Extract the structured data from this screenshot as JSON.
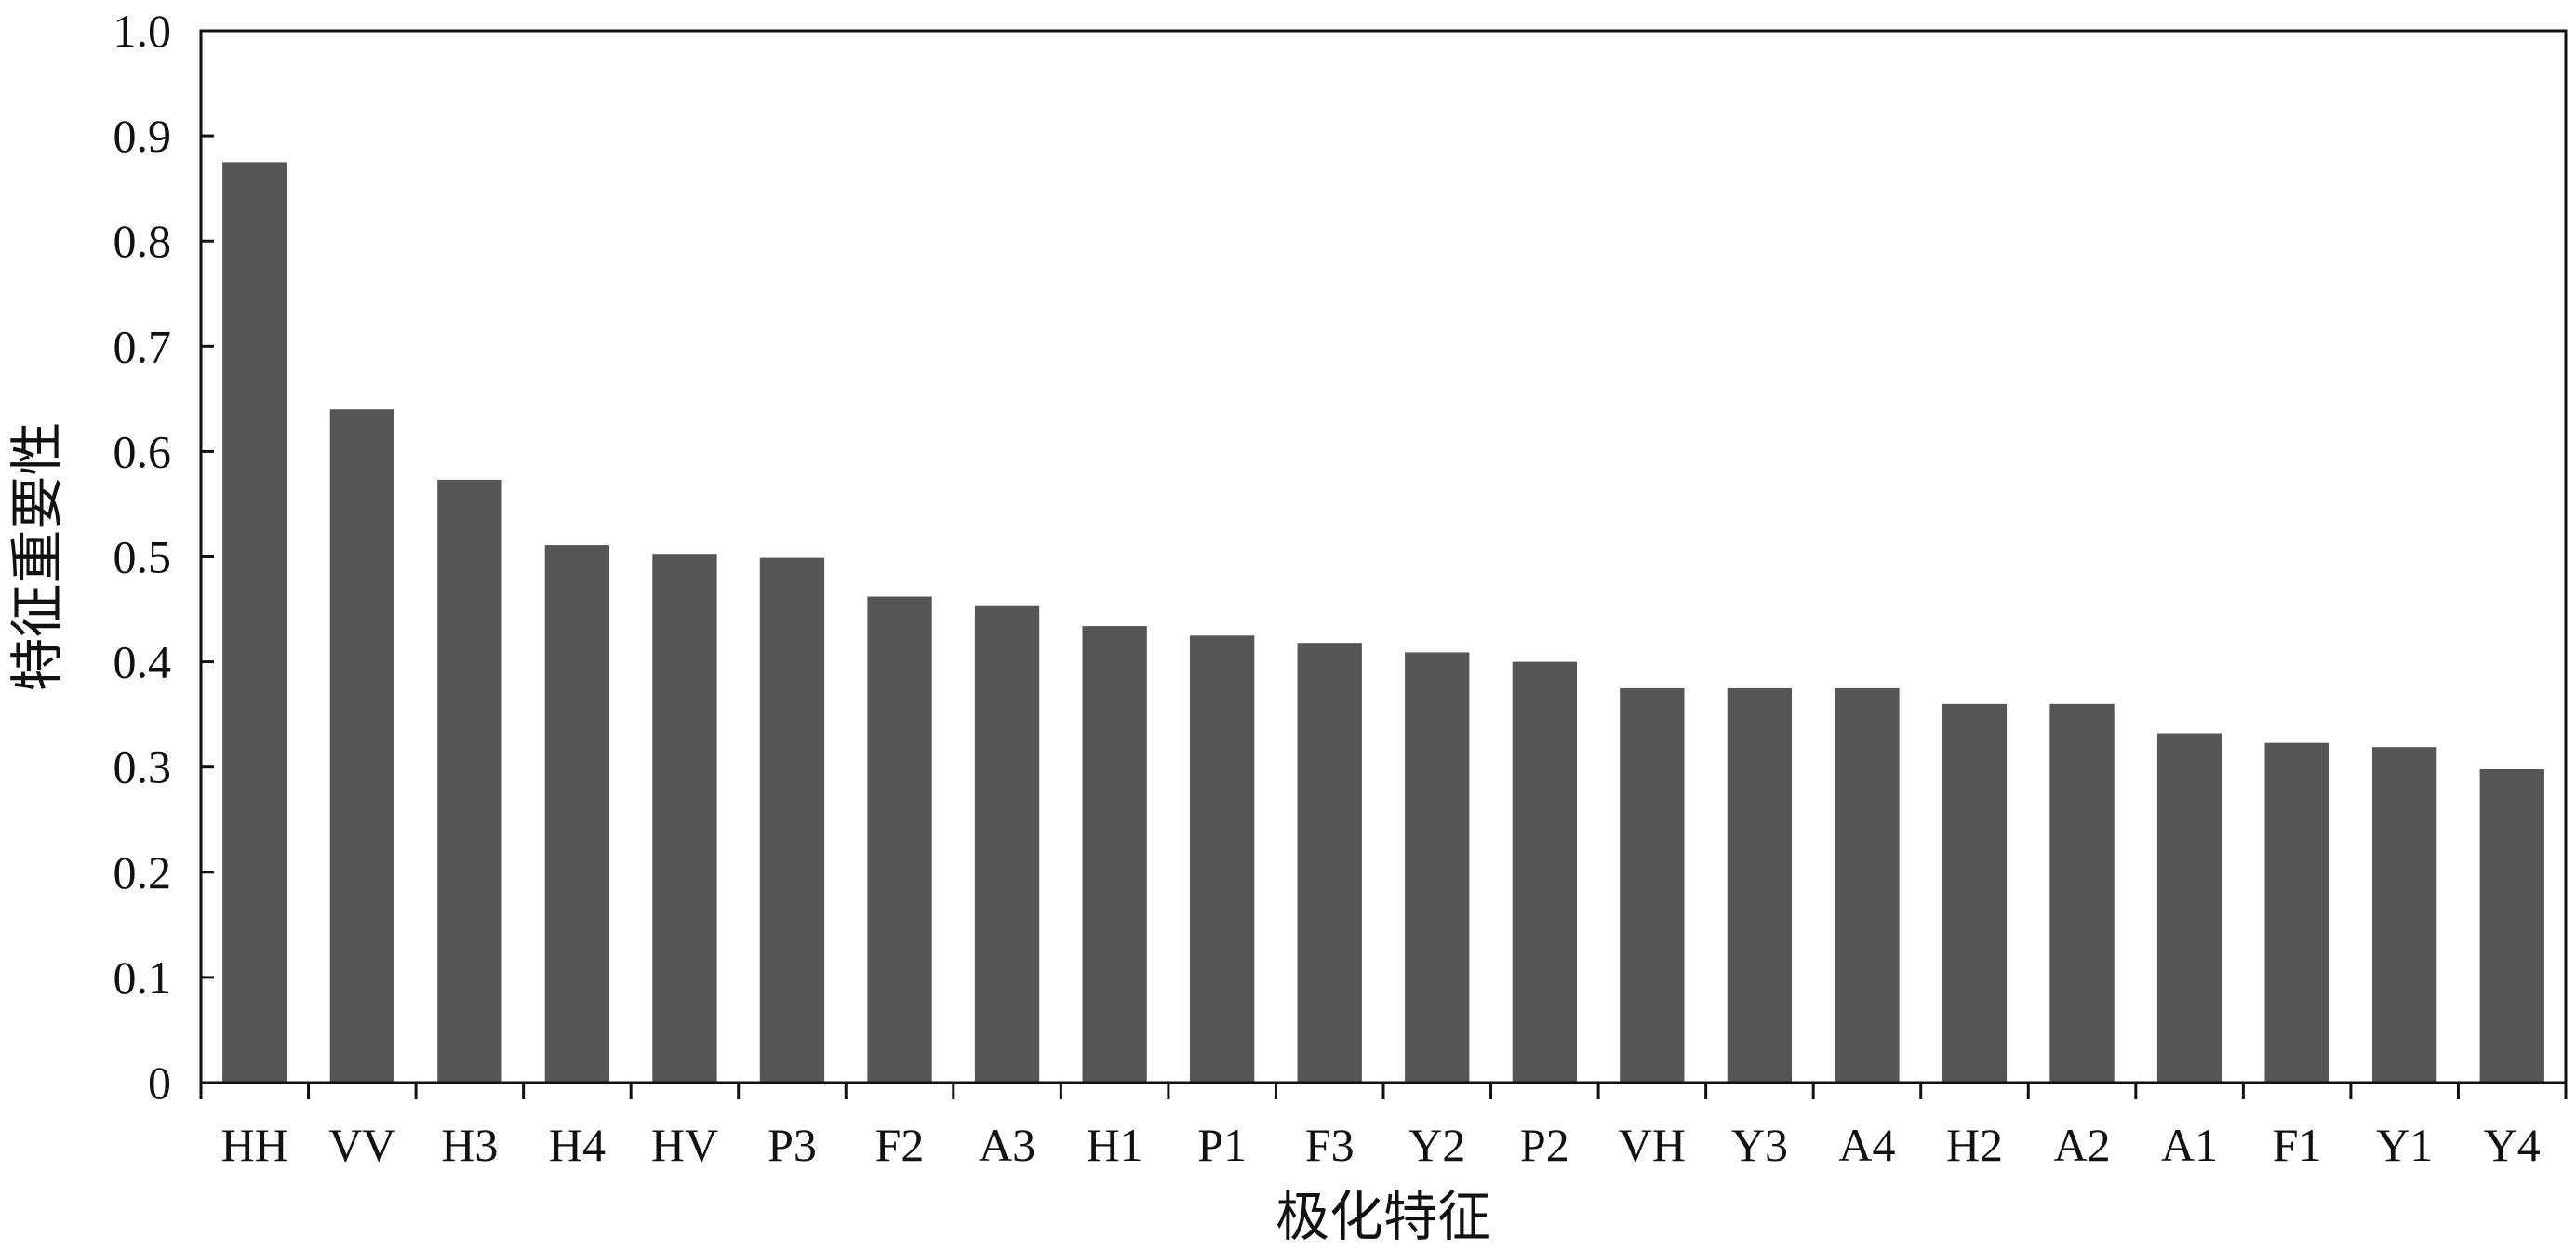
{
  "chart_data": {
    "type": "bar",
    "title": "",
    "xlabel": "极化特征",
    "ylabel": "特征重要性",
    "ylim": [
      0,
      1.0
    ],
    "yticks": [
      0,
      0.1,
      0.2,
      0.3,
      0.4,
      0.5,
      0.6,
      0.7,
      0.8,
      0.9,
      1.0
    ],
    "ytick_labels": [
      "0",
      "0.1",
      "0.2",
      "0.3",
      "0.4",
      "0.5",
      "0.6",
      "0.7",
      "0.8",
      "0.9",
      "1.0"
    ],
    "grid": false,
    "bar_color": "#555555",
    "categories": [
      "HH",
      "VV",
      "H3",
      "H4",
      "HV",
      "P3",
      "F2",
      "A3",
      "H1",
      "P1",
      "F3",
      "Y2",
      "P2",
      "VH",
      "Y3",
      "A4",
      "H2",
      "A2",
      "A1",
      "F1",
      "Y1",
      "Y4"
    ],
    "values": [
      0.875,
      0.64,
      0.573,
      0.511,
      0.502,
      0.499,
      0.462,
      0.453,
      0.434,
      0.425,
      0.418,
      0.409,
      0.4,
      0.375,
      0.375,
      0.375,
      0.36,
      0.36,
      0.332,
      0.323,
      0.319,
      0.298
    ]
  }
}
